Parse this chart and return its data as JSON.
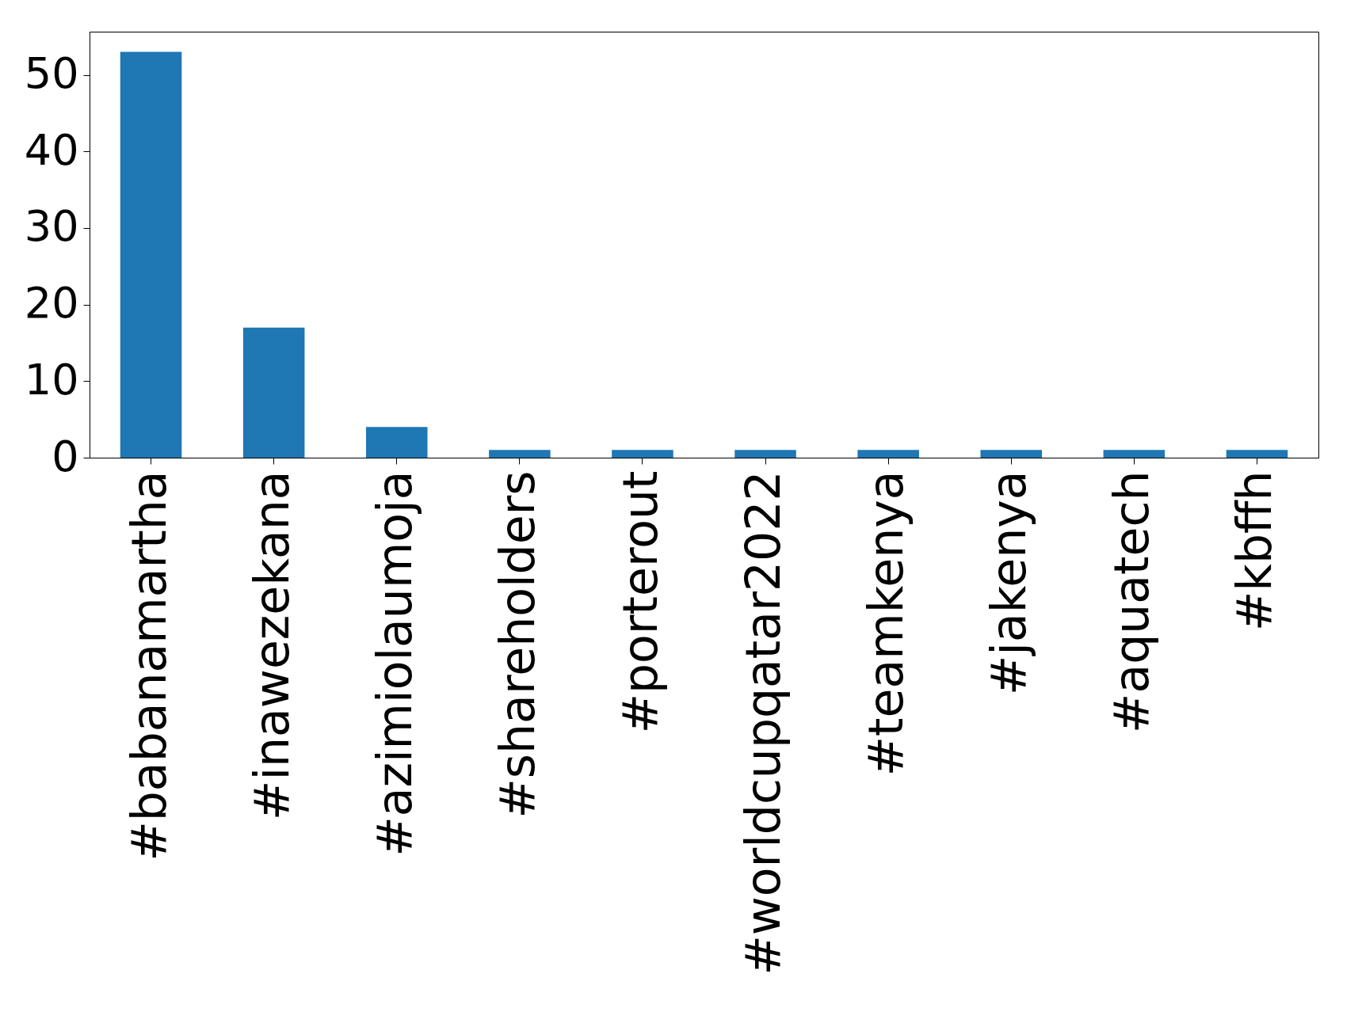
{
  "chart_data": {
    "type": "bar",
    "categories": [
      "#babanamartha",
      "#inawezekana",
      "#azimiolaumoja",
      "#shareholders",
      "#porterout",
      "#worldcupqatar2022",
      "#teamkenya",
      "#jakenya",
      "#aquatech",
      "#kbffh"
    ],
    "values": [
      53,
      17,
      4,
      1,
      1,
      1,
      1,
      1,
      1,
      1
    ],
    "color": "#1f77b4",
    "ylim": [
      0,
      55.65
    ],
    "yticks": [
      0,
      10,
      20,
      30,
      40,
      50
    ],
    "grid": false
  }
}
